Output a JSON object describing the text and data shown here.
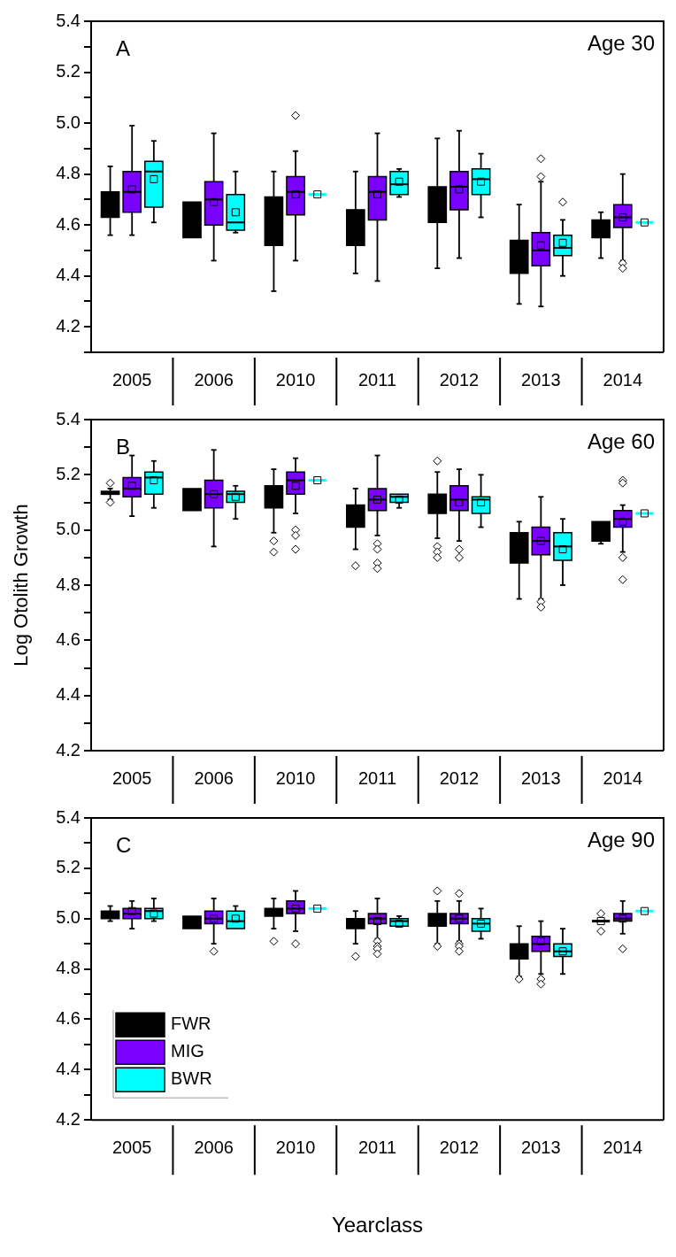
{
  "chart_data": [
    {
      "type": "box",
      "annotations": [
        "A",
        "Age 30"
      ],
      "categories": [
        "2005",
        "2006",
        "2010",
        "2011",
        "2012",
        "2013",
        "2014"
      ],
      "ylim": [
        4.1,
        5.4
      ],
      "yticks": [
        {
          "value": 4.1,
          "label": null
        },
        {
          "value": 4.2,
          "label": "4.2"
        },
        {
          "value": 4.3,
          "label": null
        },
        {
          "value": 4.4,
          "label": "4.4"
        },
        {
          "value": 4.5,
          "label": null
        },
        {
          "value": 4.6,
          "label": "4.6"
        },
        {
          "value": 4.7,
          "label": null
        },
        {
          "value": 4.8,
          "label": "4.8"
        },
        {
          "value": 4.9,
          "label": null
        },
        {
          "value": 5.0,
          "label": "5.0"
        },
        {
          "value": 5.1,
          "label": null
        },
        {
          "value": 5.2,
          "label": "5.2"
        },
        {
          "value": 5.3,
          "label": null
        },
        {
          "value": 5.4,
          "label": "5.4"
        }
      ],
      "series": [
        {
          "color": "#000000",
          "boxes": [
            {
              "low": 4.56,
              "q1": 4.63,
              "median": 4.68,
              "q3": 4.73,
              "high": 4.83
            },
            {
              "low": 4.55,
              "q1": 4.55,
              "median": 4.62,
              "q3": 4.69,
              "high": 4.69
            },
            {
              "low": 4.34,
              "q1": 4.52,
              "median": 4.62,
              "q3": 4.71,
              "high": 4.81
            },
            {
              "low": 4.41,
              "q1": 4.52,
              "median": 4.59,
              "q3": 4.66,
              "high": 4.81
            },
            {
              "low": 4.43,
              "q1": 4.61,
              "median": 4.68,
              "q3": 4.75,
              "high": 4.94
            },
            {
              "low": 4.29,
              "q1": 4.41,
              "median": 4.48,
              "q3": 4.54,
              "high": 4.68
            },
            {
              "low": 4.47,
              "q1": 4.55,
              "median": 4.59,
              "q3": 4.62,
              "high": 4.65
            }
          ]
        },
        {
          "color": "#7a00ff",
          "boxes": [
            {
              "low": 4.56,
              "q1": 4.65,
              "median": 4.73,
              "q3": 4.81,
              "high": 4.99,
              "mean": 4.74
            },
            {
              "low": 4.46,
              "q1": 4.6,
              "median": 4.7,
              "q3": 4.77,
              "high": 4.96,
              "mean": 4.69
            },
            {
              "low": 4.46,
              "q1": 4.64,
              "median": 4.73,
              "q3": 4.79,
              "high": 4.89,
              "mean": 4.72,
              "outliers": [
                5.03
              ]
            },
            {
              "low": 4.38,
              "q1": 4.62,
              "median": 4.73,
              "q3": 4.79,
              "high": 4.96,
              "mean": 4.72
            },
            {
              "low": 4.47,
              "q1": 4.66,
              "median": 4.75,
              "q3": 4.81,
              "high": 4.97,
              "mean": 4.74
            },
            {
              "low": 4.28,
              "q1": 4.44,
              "median": 4.5,
              "q3": 4.57,
              "high": 4.77,
              "mean": 4.52,
              "outliers": [
                4.86,
                4.79
              ]
            },
            {
              "low": 4.46,
              "q1": 4.59,
              "median": 4.63,
              "q3": 4.68,
              "high": 4.8,
              "mean": 4.63,
              "outliers": [
                4.45,
                4.43
              ]
            }
          ]
        },
        {
          "color": "#00ffff",
          "boxes": [
            {
              "low": 4.61,
              "q1": 4.67,
              "median": 4.81,
              "q3": 4.85,
              "high": 4.93,
              "mean": 4.78
            },
            {
              "low": 4.57,
              "q1": 4.58,
              "median": 4.61,
              "q3": 4.72,
              "high": 4.81,
              "mean": 4.65
            },
            {
              "low": 4.72,
              "q1": 4.72,
              "median": 4.72,
              "q3": 4.72,
              "high": 4.72,
              "mean": 4.72
            },
            {
              "low": 4.71,
              "q1": 4.72,
              "median": 4.76,
              "q3": 4.81,
              "high": 4.82,
              "mean": 4.77
            },
            {
              "low": 4.63,
              "q1": 4.72,
              "median": 4.78,
              "q3": 4.82,
              "high": 4.88,
              "mean": 4.77
            },
            {
              "low": 4.4,
              "q1": 4.48,
              "median": 4.51,
              "q3": 4.56,
              "high": 4.62,
              "mean": 4.53,
              "outliers": [
                4.69
              ]
            },
            {
              "low": 4.61,
              "q1": 4.61,
              "median": 4.61,
              "q3": 4.61,
              "high": 4.61,
              "mean": 4.61
            }
          ]
        }
      ]
    },
    {
      "type": "box",
      "annotations": [
        "B",
        "Age 60"
      ],
      "ylabel": "Log Otolith Growth",
      "categories": [
        "2005",
        "2006",
        "2010",
        "2011",
        "2012",
        "2013",
        "2014"
      ],
      "ylim": [
        4.2,
        5.4
      ],
      "yticks": [
        {
          "value": 4.2,
          "label": "4.2"
        },
        {
          "value": 4.3,
          "label": null
        },
        {
          "value": 4.4,
          "label": "4.4"
        },
        {
          "value": 4.5,
          "label": null
        },
        {
          "value": 4.6,
          "label": "4.6"
        },
        {
          "value": 4.7,
          "label": null
        },
        {
          "value": 4.8,
          "label": "4.8"
        },
        {
          "value": 4.9,
          "label": null
        },
        {
          "value": 5.0,
          "label": "5.0"
        },
        {
          "value": 5.1,
          "label": null
        },
        {
          "value": 5.2,
          "label": "5.2"
        },
        {
          "value": 5.3,
          "label": null
        },
        {
          "value": 5.4,
          "label": "5.4"
        }
      ],
      "series": [
        {
          "color": "#000000",
          "boxes": [
            {
              "low": 5.11,
              "q1": 5.13,
              "median": 5.13,
              "q3": 5.14,
              "high": 5.15,
              "outliers": [
                5.17,
                5.1
              ]
            },
            {
              "low": 5.07,
              "q1": 5.07,
              "median": 5.11,
              "q3": 5.15,
              "high": 5.15
            },
            {
              "low": 4.99,
              "q1": 5.08,
              "median": 5.12,
              "q3": 5.16,
              "high": 5.22,
              "outliers": [
                4.96,
                4.92
              ]
            },
            {
              "low": 4.93,
              "q1": 5.01,
              "median": 5.05,
              "q3": 5.09,
              "high": 5.15,
              "outliers": [
                4.87
              ]
            },
            {
              "low": 4.97,
              "q1": 5.06,
              "median": 5.1,
              "q3": 5.13,
              "high": 5.21,
              "outliers": [
                5.25,
                4.94,
                4.92,
                4.9
              ]
            },
            {
              "low": 4.75,
              "q1": 4.88,
              "median": 4.94,
              "q3": 4.99,
              "high": 5.03
            },
            {
              "low": 4.95,
              "q1": 4.96,
              "median": 4.99,
              "q3": 5.03,
              "high": 5.03
            }
          ]
        },
        {
          "color": "#7a00ff",
          "boxes": [
            {
              "low": 5.05,
              "q1": 5.12,
              "median": 5.15,
              "q3": 5.19,
              "high": 5.27,
              "mean": 5.16
            },
            {
              "low": 4.94,
              "q1": 5.08,
              "median": 5.13,
              "q3": 5.18,
              "high": 5.29,
              "mean": 5.13
            },
            {
              "low": 5.06,
              "q1": 5.13,
              "median": 5.18,
              "q3": 5.21,
              "high": 5.26,
              "mean": 5.16,
              "outliers": [
                5.0,
                4.98,
                4.93
              ]
            },
            {
              "low": 4.98,
              "q1": 5.07,
              "median": 5.11,
              "q3": 5.15,
              "high": 5.27,
              "mean": 5.11,
              "outliers": [
                4.95,
                4.93,
                4.88,
                4.86
              ]
            },
            {
              "low": 4.96,
              "q1": 5.07,
              "median": 5.11,
              "q3": 5.16,
              "high": 5.22,
              "mean": 5.1,
              "outliers": [
                4.93,
                4.9
              ]
            },
            {
              "low": 4.75,
              "q1": 4.91,
              "median": 4.96,
              "q3": 5.01,
              "high": 5.12,
              "mean": 4.96,
              "outliers": [
                4.74,
                4.72
              ]
            },
            {
              "low": 4.92,
              "q1": 5.01,
              "median": 5.04,
              "q3": 5.07,
              "high": 5.09,
              "mean": 5.03,
              "outliers": [
                5.18,
                5.17,
                4.9,
                4.82
              ]
            }
          ]
        },
        {
          "color": "#00ffff",
          "boxes": [
            {
              "low": 5.08,
              "q1": 5.13,
              "median": 5.19,
              "q3": 5.21,
              "high": 5.25,
              "mean": 5.18
            },
            {
              "low": 5.04,
              "q1": 5.1,
              "median": 5.13,
              "q3": 5.14,
              "high": 5.16,
              "mean": 5.12
            },
            {
              "low": 5.18,
              "q1": 5.18,
              "median": 5.18,
              "q3": 5.18,
              "high": 5.18,
              "mean": 5.18
            },
            {
              "low": 5.08,
              "q1": 5.1,
              "median": 5.12,
              "q3": 5.13,
              "high": 5.13,
              "mean": 5.11
            },
            {
              "low": 5.01,
              "q1": 5.06,
              "median": 5.11,
              "q3": 5.12,
              "high": 5.2,
              "mean": 5.1
            },
            {
              "low": 4.8,
              "q1": 4.89,
              "median": 4.94,
              "q3": 4.99,
              "high": 5.04,
              "mean": 4.93
            },
            {
              "low": 5.06,
              "q1": 5.06,
              "median": 5.06,
              "q3": 5.06,
              "high": 5.06,
              "mean": 5.06
            }
          ]
        }
      ]
    },
    {
      "type": "box",
      "annotations": [
        "C",
        "Age 90"
      ],
      "xlabel": "Yearclass",
      "legend": "bottom left",
      "categories": [
        "2005",
        "2006",
        "2010",
        "2011",
        "2012",
        "2013",
        "2014"
      ],
      "ylim": [
        4.2,
        5.4
      ],
      "yticks": [
        {
          "value": 4.2,
          "label": "4.2"
        },
        {
          "value": 4.3,
          "label": null
        },
        {
          "value": 4.4,
          "label": "4.4"
        },
        {
          "value": 4.5,
          "label": null
        },
        {
          "value": 4.6,
          "label": "4.6"
        },
        {
          "value": 4.7,
          "label": null
        },
        {
          "value": 4.8,
          "label": "4.8"
        },
        {
          "value": 4.9,
          "label": null
        },
        {
          "value": 5.0,
          "label": "5.0"
        },
        {
          "value": 5.1,
          "label": null
        },
        {
          "value": 5.2,
          "label": "5.2"
        },
        {
          "value": 5.3,
          "label": null
        },
        {
          "value": 5.4,
          "label": "5.4"
        }
      ],
      "series": [
        {
          "name": "FWR",
          "color": "#000000",
          "boxes": [
            {
              "low": 4.99,
              "q1": 5.0,
              "median": 5.01,
              "q3": 5.03,
              "high": 5.05
            },
            {
              "low": 4.96,
              "q1": 4.96,
              "median": 4.99,
              "q3": 5.01,
              "high": 5.01
            },
            {
              "low": 4.96,
              "q1": 5.01,
              "median": 5.02,
              "q3": 5.04,
              "high": 5.08,
              "outliers": [
                4.91
              ]
            },
            {
              "low": 4.9,
              "q1": 4.96,
              "median": 4.98,
              "q3": 5.0,
              "high": 5.03,
              "outliers": [
                4.85
              ]
            },
            {
              "low": 4.9,
              "q1": 4.97,
              "median": 5.0,
              "q3": 5.02,
              "high": 5.07,
              "outliers": [
                5.11,
                4.89
              ]
            },
            {
              "low": 4.77,
              "q1": 4.84,
              "median": 4.87,
              "q3": 4.9,
              "high": 4.97,
              "outliers": [
                4.76
              ]
            },
            {
              "low": 4.99,
              "q1": 4.99,
              "median": 4.99,
              "q3": 4.99,
              "high": 4.99,
              "mean": 4.99,
              "outliers": [
                5.02,
                4.95
              ]
            }
          ]
        },
        {
          "name": "MIG",
          "color": "#7a00ff",
          "boxes": [
            {
              "low": 4.96,
              "q1": 5.0,
              "median": 5.02,
              "q3": 5.04,
              "high": 5.07,
              "mean": 5.03
            },
            {
              "low": 4.9,
              "q1": 4.98,
              "median": 5.0,
              "q3": 5.03,
              "high": 5.08,
              "mean": 5.0,
              "outliers": [
                4.87
              ]
            },
            {
              "low": 4.95,
              "q1": 5.02,
              "median": 5.04,
              "q3": 5.07,
              "high": 5.11,
              "mean": 5.04,
              "outliers": [
                4.9
              ]
            },
            {
              "low": 4.92,
              "q1": 4.98,
              "median": 5.0,
              "q3": 5.02,
              "high": 5.08,
              "mean": 4.99,
              "outliers": [
                4.91,
                4.89,
                4.88,
                4.86
              ]
            },
            {
              "low": 4.91,
              "q1": 4.98,
              "median": 5.0,
              "q3": 5.02,
              "high": 5.07,
              "mean": 5.0,
              "outliers": [
                5.1,
                4.9,
                4.89,
                4.87
              ]
            },
            {
              "low": 4.78,
              "q1": 4.87,
              "median": 4.9,
              "q3": 4.93,
              "high": 4.99,
              "mean": 4.91,
              "outliers": [
                4.76,
                4.74
              ]
            },
            {
              "low": 4.94,
              "q1": 4.99,
              "median": 5.0,
              "q3": 5.02,
              "high": 5.07,
              "mean": 5.0,
              "outliers": [
                4.88
              ]
            }
          ]
        },
        {
          "name": "BWR",
          "color": "#00ffff",
          "boxes": [
            {
              "low": 4.99,
              "q1": 5.0,
              "median": 5.03,
              "q3": 5.04,
              "high": 5.08,
              "mean": 5.02
            },
            {
              "low": 4.96,
              "q1": 4.96,
              "median": 4.99,
              "q3": 5.03,
              "high": 5.05,
              "mean": 5.0
            },
            {
              "low": 5.04,
              "q1": 5.04,
              "median": 5.04,
              "q3": 5.04,
              "high": 5.04,
              "mean": 5.04
            },
            {
              "low": 4.97,
              "q1": 4.97,
              "median": 4.99,
              "q3": 5.0,
              "high": 5.01,
              "mean": 4.98
            },
            {
              "low": 4.92,
              "q1": 4.95,
              "median": 4.98,
              "q3": 5.0,
              "high": 5.04,
              "mean": 4.98
            },
            {
              "low": 4.78,
              "q1": 4.85,
              "median": 4.87,
              "q3": 4.9,
              "high": 4.96,
              "mean": 4.87
            },
            {
              "low": 5.03,
              "q1": 5.03,
              "median": 5.03,
              "q3": 5.03,
              "high": 5.03,
              "mean": 5.03
            }
          ]
        }
      ]
    }
  ]
}
